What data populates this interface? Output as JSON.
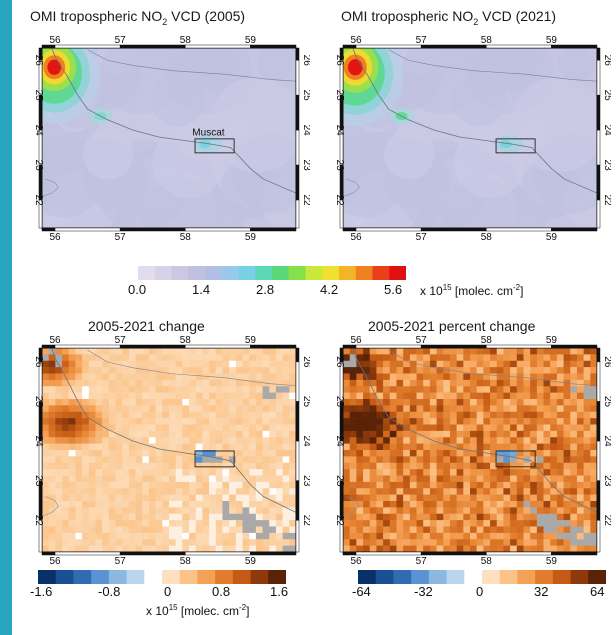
{
  "accent_color": "#27a5c1",
  "panels": [
    {
      "title_pre": "OMI tropospheric NO",
      "title_sub": "2",
      "title_post": " VCD (2005)",
      "kind": "vcd2005",
      "label": "Muscat"
    },
    {
      "title_pre": "OMI tropospheric NO",
      "title_sub": "2",
      "title_post": " VCD (2021)",
      "kind": "vcd2021"
    },
    {
      "title_pre": "2005-2021 change",
      "title_sub": "",
      "title_post": "",
      "kind": "change"
    },
    {
      "title_pre": "2005-2021 percent change",
      "title_sub": "",
      "title_post": "",
      "kind": "pct"
    }
  ],
  "lon_ticks": [
    "56",
    "57",
    "58",
    "59"
  ],
  "lat_ticks": [
    "26",
    "25",
    "24",
    "23",
    "22"
  ],
  "colorbars": {
    "vcd": {
      "labels": [
        "0.0",
        "1.4",
        "2.8",
        "4.2",
        "5.6"
      ],
      "unit_pre": "x 10",
      "unit_exp": "15",
      "unit_mid": " [molec. cm",
      "unit_exp2": "-2",
      "unit_post": "]",
      "colors": [
        "#e2dcec",
        "#d8d2e8",
        "#ccc8e4",
        "#c0c0e0",
        "#b0c0e4",
        "#98c8ea",
        "#78d0e4",
        "#5cd8b4",
        "#5ad878",
        "#88e048",
        "#c8e83c",
        "#f0e030",
        "#f4b428",
        "#f08020",
        "#e84018",
        "#e01010"
      ]
    },
    "change": {
      "labels": [
        "-1.6",
        "-0.8",
        "0",
        "0.8",
        "1.6"
      ],
      "unit_pre": "x 10",
      "unit_exp": "15",
      "unit_mid": " [molec. cm",
      "unit_exp2": "-2",
      "unit_post": "]",
      "colors": [
        "#08306b",
        "#1c4e92",
        "#2f6cb4",
        "#5a93cf",
        "#8bb7e0",
        "#bcd5ee",
        "#ffffff",
        "#fde0c0",
        "#fbc388",
        "#f5a054",
        "#e07c2c",
        "#c45a14",
        "#8c3a0c",
        "#5a2206"
      ]
    },
    "pct": {
      "labels": [
        "-64",
        "-32",
        "0",
        "32",
        "64"
      ],
      "colors": [
        "#08306b",
        "#1c4e92",
        "#2f6cb4",
        "#5a93cf",
        "#8bb7e0",
        "#bcd5ee",
        "#ffffff",
        "#fde0c0",
        "#fbc388",
        "#f5a054",
        "#e07c2c",
        "#c45a14",
        "#8c3a0c",
        "#5a2206"
      ]
    }
  }
}
